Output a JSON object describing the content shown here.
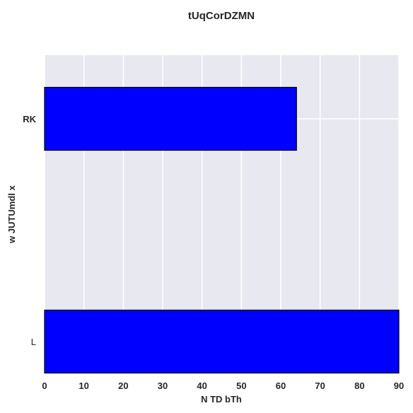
{
  "chart_data": {
    "type": "bar",
    "orientation": "horizontal",
    "title": "tUqCorDZMN",
    "xlabel": "N TD bTh",
    "ylabel": "w JUTUmdl x",
    "categories": [
      "L",
      "RK"
    ],
    "values": [
      90,
      64
    ],
    "xlim": [
      0,
      90
    ],
    "xticks": [
      0,
      10,
      20,
      30,
      40,
      50,
      60,
      70,
      80,
      90
    ],
    "grid": true,
    "legend": "none",
    "colors": {
      "bar_fill": "#0000ff",
      "bar_edge": "#000000",
      "plot_background": "#e8e8f0",
      "grid": "#ffffff",
      "text": "#262626"
    }
  }
}
